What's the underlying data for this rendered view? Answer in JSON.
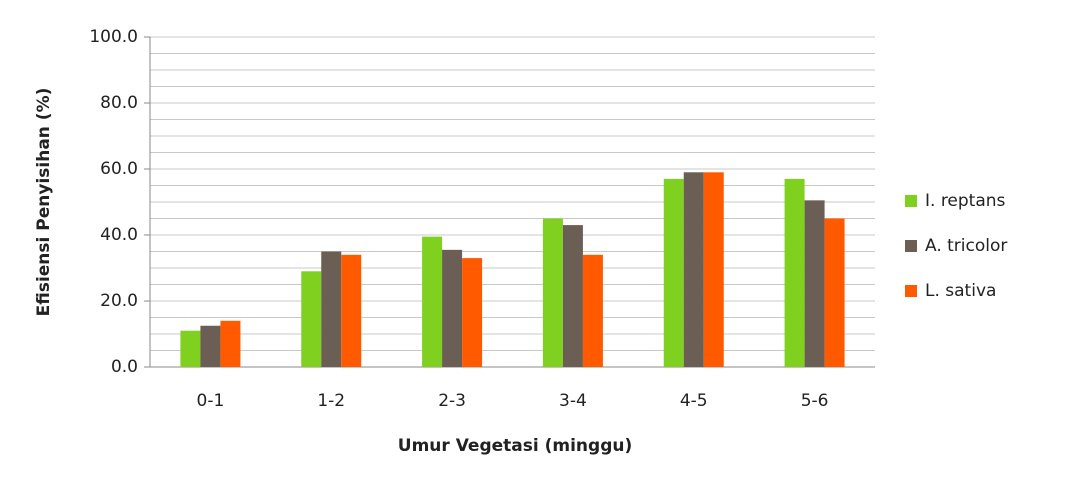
{
  "chart_data": {
    "type": "bar",
    "x_label": "Umur Vegetasi (minggu)",
    "y_label": "Efisiensi Penyisihan (%)",
    "categories": [
      "0-1",
      "1-2",
      "2-3",
      "3-4",
      "4-5",
      "5-6"
    ],
    "series": [
      {
        "name": "I. reptans",
        "color": "#80d020",
        "values": [
          11,
          29,
          39.5,
          45,
          57,
          57
        ]
      },
      {
        "name": "A. tricolor",
        "color": "#6b5e55",
        "values": [
          12.5,
          35,
          35.5,
          43,
          59,
          50.5
        ]
      },
      {
        "name": "L. sativa",
        "color": "#ff5a00",
        "values": [
          14,
          34,
          33,
          34,
          59,
          45
        ]
      }
    ],
    "ylim": [
      0,
      100
    ],
    "yticks": [
      {
        "value": 0,
        "label": "0.0"
      },
      {
        "value": 20,
        "label": "20.0"
      },
      {
        "value": 40,
        "label": "40.0"
      },
      {
        "value": 60,
        "label": "60.0"
      },
      {
        "value": 80,
        "label": "80.0"
      },
      {
        "value": 100,
        "label": "100.0"
      }
    ],
    "minor_yticks": [
      5,
      10,
      15,
      25,
      30,
      35,
      45,
      50,
      55,
      65,
      70,
      75,
      85,
      90,
      95
    ],
    "grid": true,
    "legend": "right"
  }
}
